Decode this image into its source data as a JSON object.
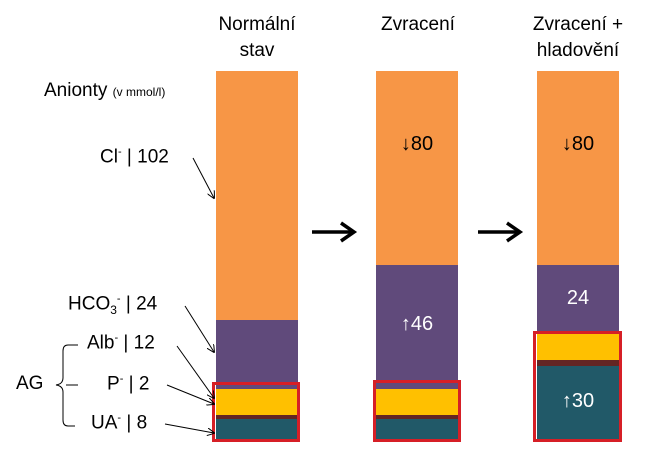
{
  "titles": {
    "normal": [
      "Normální",
      "stav"
    ],
    "vomit": [
      "Zvracení"
    ],
    "vomit_starve": [
      "Zvracení +",
      "hladovění"
    ]
  },
  "anion_heading": {
    "main": "Anionty",
    "unit": "(v mmol/l)"
  },
  "labels": {
    "cl": {
      "ion": "Cl",
      "charge": "-",
      "value": "| 102"
    },
    "hco3": {
      "ion": "HCO",
      "sub": "3",
      "charge": "-",
      "value": "| 24"
    },
    "alb": {
      "ion": "Alb",
      "charge": "-",
      "value": "| 12"
    },
    "p": {
      "ion": "P",
      "charge": "-",
      "value": "| 2"
    },
    "ua": {
      "ion": "UA",
      "charge": "-",
      "value": "| 8"
    },
    "ag": "AG"
  },
  "bar_values": {
    "vomit_cl": "↓80",
    "vomit_hco3": "↑46",
    "vs_cl": "↓80",
    "vs_hco3": "24",
    "vs_ua": "↑30"
  },
  "colors": {
    "cl": "#f79646",
    "hco3": "#604a7b",
    "alb_p": "#ffc000",
    "divider": "#632523",
    "ua": "#215968",
    "red_box": "#d61f26"
  }
}
